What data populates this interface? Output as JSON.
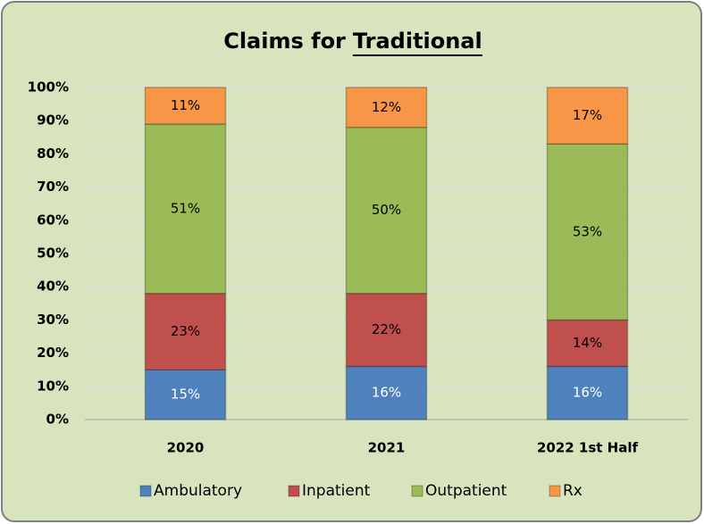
{
  "chart_data": {
    "type": "bar",
    "stacked": true,
    "title": "Claims for",
    "title_underlined": "Traditional",
    "categories": [
      "2020",
      "2021",
      "2022 1st Half"
    ],
    "series": [
      {
        "name": "Ambulatory",
        "color": "#4f81bd",
        "values": [
          15,
          16,
          16
        ],
        "value_labels": [
          "15%",
          "16%",
          "16%"
        ]
      },
      {
        "name": "Inpatient",
        "color": "#c0504d",
        "values": [
          23,
          22,
          14
        ],
        "value_labels": [
          "23%",
          "22%",
          "14%"
        ]
      },
      {
        "name": "Outpatient",
        "color": "#9bbb59",
        "values": [
          51,
          50,
          53
        ],
        "value_labels": [
          "51%",
          "50%",
          "53%"
        ]
      },
      {
        "name": "Rx",
        "color": "#f79646",
        "values": [
          11,
          12,
          17
        ],
        "value_labels": [
          "11%",
          "12%",
          "17%"
        ]
      }
    ],
    "ylim": [
      0,
      100
    ],
    "yticks": [
      {
        "value": 0,
        "label": "0%"
      },
      {
        "value": 10,
        "label": "10%"
      },
      {
        "value": 20,
        "label": "20%"
      },
      {
        "value": 30,
        "label": "30%"
      },
      {
        "value": 40,
        "label": "40%"
      },
      {
        "value": 50,
        "label": "50%"
      },
      {
        "value": 60,
        "label": "60%"
      },
      {
        "value": 70,
        "label": "70%"
      },
      {
        "value": 80,
        "label": "80%"
      },
      {
        "value": 90,
        "label": "90%"
      },
      {
        "value": 100,
        "label": "100%"
      }
    ],
    "grid": true,
    "legend": "bottom"
  }
}
